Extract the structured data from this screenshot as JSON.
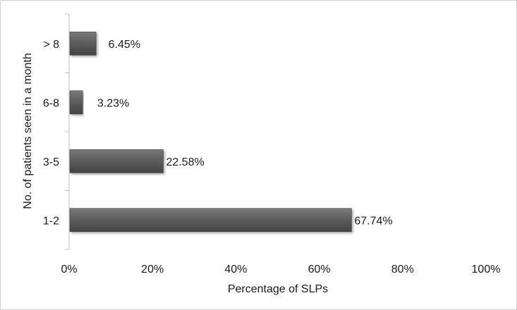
{
  "chart_data": {
    "type": "bar",
    "orientation": "horizontal",
    "categories": [
      "> 8",
      "6-8",
      "3-5",
      "1-2"
    ],
    "values": [
      6.45,
      3.23,
      22.58,
      67.74
    ],
    "data_labels": [
      "6.45%",
      "3.23%",
      "22.58%",
      "67.74%"
    ],
    "xlabel": "Percentage of SLPs",
    "ylabel": "No. of patients seen in a month",
    "xlim": [
      0,
      100
    ],
    "x_ticks": [
      0,
      20,
      40,
      60,
      80,
      100
    ],
    "x_tick_labels": [
      "0%",
      "20%",
      "40%",
      "60%",
      "80%",
      "100%"
    ],
    "grid": false,
    "legend": "none",
    "bar_color": "#5a5a5a"
  }
}
